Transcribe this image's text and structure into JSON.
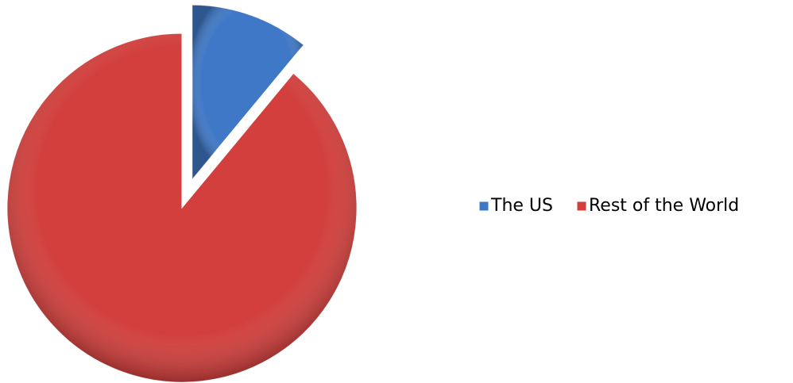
{
  "chart_data": {
    "type": "pie",
    "categories": [
      "The US",
      "Rest of the World"
    ],
    "values": [
      11,
      89
    ],
    "colors": [
      "#3f78c6",
      "#d23f3c"
    ],
    "legend": "right"
  }
}
